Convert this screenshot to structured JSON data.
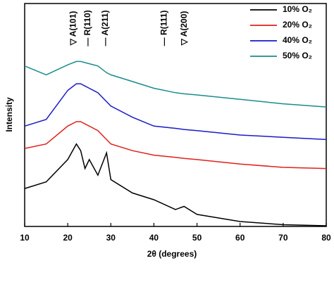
{
  "chart_data": {
    "type": "line",
    "xlabel": "2θ (degrees)",
    "ylabel": "Intensity",
    "x": [
      10,
      15,
      20,
      22,
      23,
      24,
      25,
      27,
      29,
      30,
      35,
      40,
      45,
      47,
      50,
      60,
      70,
      80
    ],
    "series": [
      {
        "name": "10% O₂",
        "color": "#000000",
        "values": [
          17,
          20,
          30,
          37,
          34,
          26,
          30,
          23,
          33,
          21,
          15,
          12,
          7.6,
          9,
          5.4,
          2.2,
          0.8,
          0.3
        ]
      },
      {
        "name": "20% O₂",
        "color": "#e0201b",
        "values": [
          35,
          37,
          45,
          47,
          47,
          46,
          45,
          43,
          39,
          37,
          34,
          32,
          31,
          30.5,
          30,
          28,
          26.5,
          26
        ]
      },
      {
        "name": "40% O₂",
        "color": "#1a1ac8",
        "values": [
          45,
          48,
          61,
          64,
          64,
          63,
          62,
          60,
          56,
          54,
          49,
          45,
          44,
          43.5,
          43,
          41,
          40,
          39
        ]
      },
      {
        "name": "50% O₂",
        "color": "#1a8c8c",
        "values": [
          72,
          68,
          72.5,
          74,
          74,
          73.5,
          73,
          72,
          69,
          68,
          65,
          62,
          60,
          59.5,
          59,
          57,
          55,
          53.6
        ]
      }
    ],
    "annotations": [
      {
        "text": "▽ A(101)",
        "x": 21.3
      },
      {
        "text": "— R(110)",
        "x": 24.7
      },
      {
        "text": "— A(211)",
        "x": 28.8
      },
      {
        "text": "— R(111)",
        "x": 42.4
      },
      {
        "text": "▽ A(200)",
        "x": 47.1
      }
    ],
    "xlim": [
      10,
      80
    ],
    "xticks": [
      10,
      20,
      30,
      40,
      50,
      60,
      70,
      80
    ],
    "ylim": [
      0,
      100
    ],
    "legend": "upper right"
  }
}
